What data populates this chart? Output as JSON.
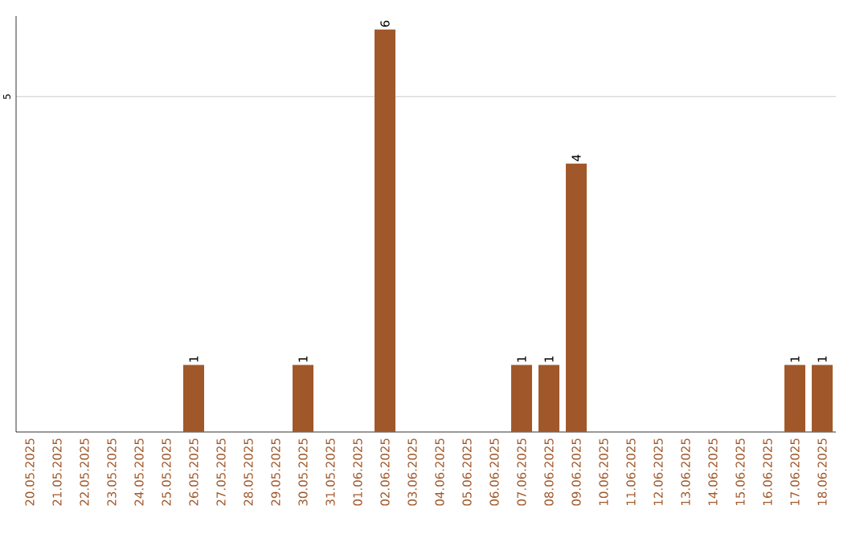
{
  "chart_data": {
    "type": "bar",
    "categories": [
      "20.05.2025",
      "21.05.2025",
      "22.05.2025",
      "23.05.2025",
      "24.05.2025",
      "25.05.2025",
      "26.05.2025",
      "27.05.2025",
      "28.05.2025",
      "29.05.2025",
      "30.05.2025",
      "31.05.2025",
      "01.06.2025",
      "02.06.2025",
      "03.06.2025",
      "04.06.2025",
      "05.06.2025",
      "06.06.2025",
      "07.06.2025",
      "08.06.2025",
      "09.06.2025",
      "10.06.2025",
      "11.06.2025",
      "12.06.2025",
      "13.06.2025",
      "14.06.2025",
      "15.06.2025",
      "16.06.2025",
      "17.06.2025",
      "18.06.2025"
    ],
    "values": [
      0,
      0,
      0,
      0,
      0,
      0,
      1,
      0,
      0,
      0,
      1,
      0,
      0,
      6,
      0,
      0,
      0,
      0,
      1,
      1,
      4,
      0,
      0,
      0,
      0,
      0,
      0,
      0,
      1,
      1
    ],
    "value_labels": [
      null,
      null,
      null,
      null,
      null,
      null,
      "1",
      null,
      null,
      null,
      "1",
      null,
      null,
      "6",
      null,
      null,
      null,
      null,
      "1",
      "1",
      "4",
      null,
      null,
      null,
      null,
      null,
      null,
      null,
      "1",
      "1"
    ],
    "color": "#a0582a",
    "ylim": [
      0,
      6.2
    ],
    "yticks": [
      5
    ],
    "grid": "y"
  }
}
